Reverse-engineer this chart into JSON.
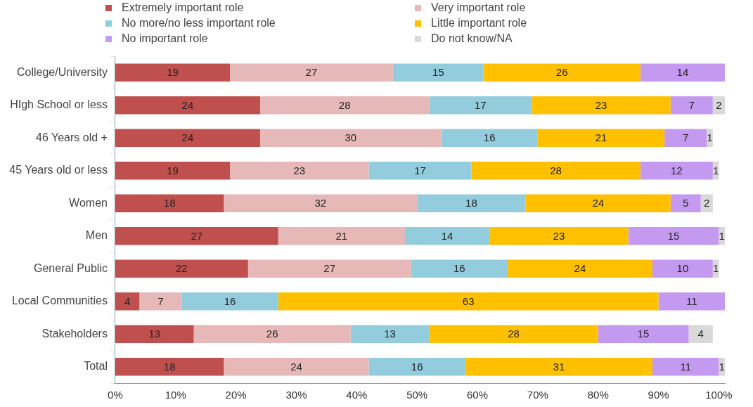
{
  "chart_data": {
    "type": "bar",
    "orientation": "horizontal",
    "stacked": true,
    "data_labels": true,
    "legend": "top",
    "grid": false,
    "categories": [
      "College/University",
      "HIgh School or less",
      "46 Years old +",
      "45 Years old or less",
      "Women",
      "Men",
      "General Public",
      "Local Communities",
      "Stakeholders",
      "Total"
    ],
    "series": [
      {
        "name": "Extremely important role",
        "color": "#c0504d",
        "values": [
          19,
          24,
          24,
          19,
          18,
          27,
          22,
          4,
          13,
          18
        ]
      },
      {
        "name": "Very important role",
        "color": "#e6b9b8",
        "values": [
          27,
          28,
          30,
          23,
          32,
          21,
          27,
          7,
          26,
          24
        ]
      },
      {
        "name": "No more/no less important role",
        "color": "#93cddd",
        "values": [
          15,
          17,
          16,
          17,
          18,
          14,
          16,
          16,
          13,
          16
        ]
      },
      {
        "name": "Little important role",
        "color": "#ffc000",
        "values": [
          26,
          23,
          21,
          28,
          24,
          23,
          24,
          63,
          28,
          31
        ]
      },
      {
        "name": "No important role",
        "color": "#c49af0",
        "values": [
          14,
          7,
          7,
          12,
          5,
          15,
          10,
          11,
          15,
          11
        ]
      },
      {
        "name": "Do not know/NA",
        "color": "#d9d9d9",
        "values": [
          null,
          2,
          1,
          1,
          2,
          1,
          1,
          null,
          4,
          1
        ]
      }
    ],
    "xlim": [
      0,
      101
    ],
    "xticks": [
      {
        "value": 0,
        "label": "0%"
      },
      {
        "value": 10,
        "label": "10%"
      },
      {
        "value": 20,
        "label": "20%"
      },
      {
        "value": 30,
        "label": "30%"
      },
      {
        "value": 40,
        "label": "40%"
      },
      {
        "value": 50,
        "label": "50%"
      },
      {
        "value": 60,
        "label": "60%"
      },
      {
        "value": 70,
        "label": "70%"
      },
      {
        "value": 80,
        "label": "80%"
      },
      {
        "value": 90,
        "label": "90%"
      },
      {
        "value": 100,
        "label": "100%"
      }
    ]
  }
}
